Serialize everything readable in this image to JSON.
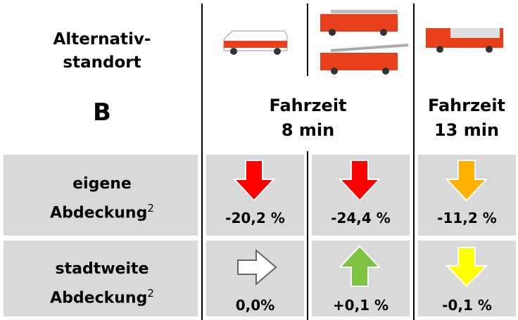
{
  "header": {
    "title_lines": [
      "Alternativ-",
      "standort"
    ],
    "site": "B",
    "columns": [
      {
        "lines": [
          "Fahrzeit",
          "8 min"
        ]
      },
      {
        "lines": [
          "Fahrzeit",
          "13 min"
        ]
      }
    ]
  },
  "rows": [
    {
      "label_lines": [
        "eigene",
        "Abdeckung"
      ],
      "footnote": "2",
      "cells": [
        "-20,2 %",
        "-24,4 %",
        "-11,2 %"
      ]
    },
    {
      "label_lines": [
        "stadtweite",
        "Abdeckung"
      ],
      "footnote": "2",
      "cells": [
        "0,0%",
        "+0,1 %",
        "-0,1 %"
      ]
    }
  ]
}
